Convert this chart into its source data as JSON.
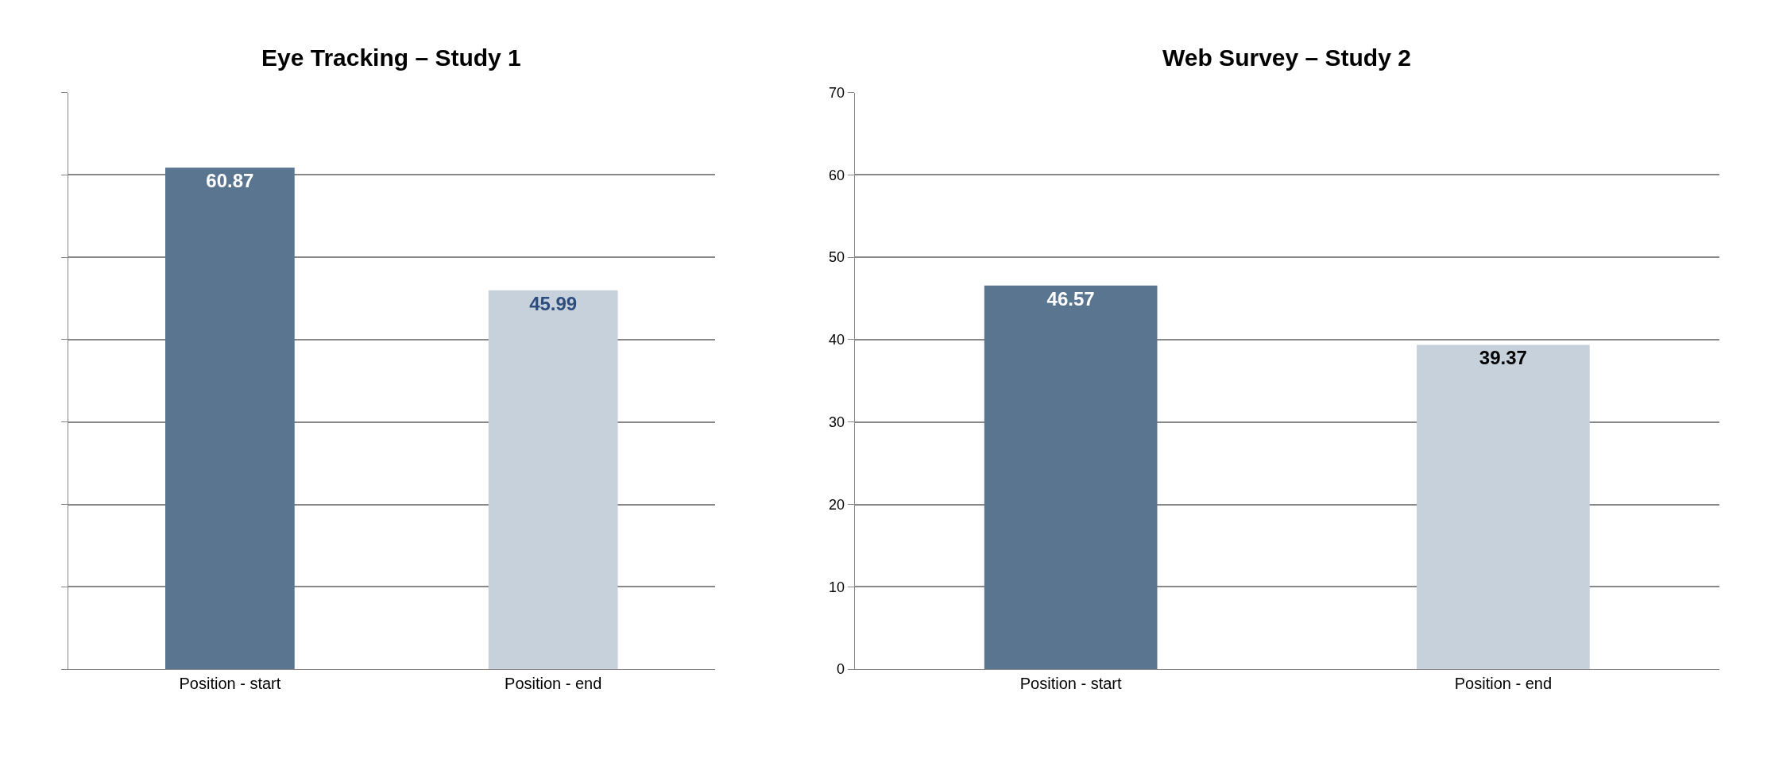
{
  "chart_data": [
    {
      "type": "bar",
      "title": "Eye Tracking – Study 1",
      "categories": [
        "Position - start",
        "Position - end"
      ],
      "values": [
        60.87,
        45.99
      ],
      "colors": [
        "#5a7590",
        "#c6d1dc"
      ],
      "ylim": [
        0,
        70
      ],
      "yticks": [
        0,
        10,
        20,
        30,
        40,
        50,
        60,
        70
      ],
      "grid": "y",
      "data_labels": true,
      "tick_labels": "x"
    },
    {
      "type": "bar",
      "title": "Web Survey – Study 2",
      "categories": [
        "Position - start",
        "Position - end"
      ],
      "values": [
        46.57,
        39.37
      ],
      "colors": [
        "#5a7590",
        "#c6d1dc"
      ],
      "ylim": [
        0,
        70
      ],
      "yticks": [
        0,
        10,
        20,
        30,
        40,
        50,
        60,
        70
      ],
      "grid": "y",
      "data_labels": true
    }
  ]
}
